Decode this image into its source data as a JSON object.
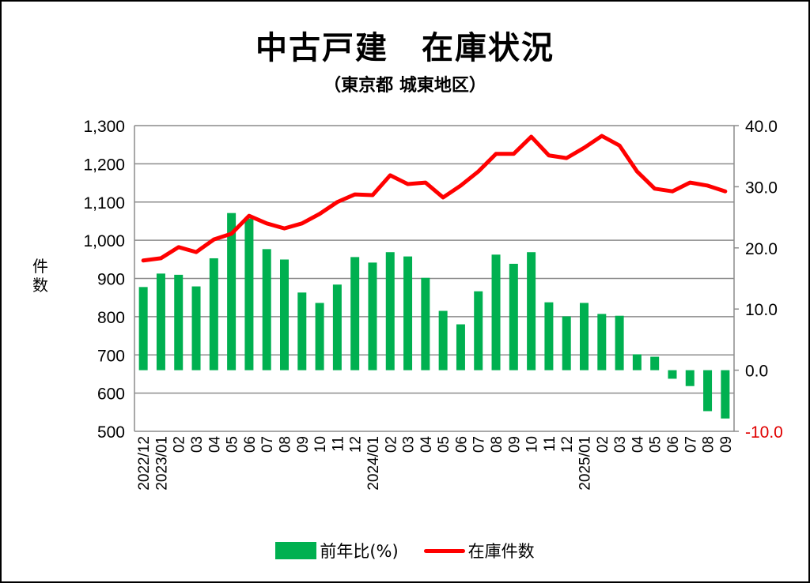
{
  "chart_data": {
    "type": "bar+line",
    "title": "中古戸建　在庫状況",
    "subtitle": "（東京都 城東地区）",
    "ylabel": "件数",
    "categories": [
      "2022/12",
      "2023/01",
      "02",
      "03",
      "04",
      "05",
      "06",
      "07",
      "08",
      "09",
      "10",
      "11",
      "12",
      "2024/01",
      "02",
      "03",
      "04",
      "05",
      "06",
      "07",
      "08",
      "09",
      "10",
      "11",
      "12",
      "2025/01",
      "02",
      "03",
      "04",
      "05",
      "06",
      "07",
      "08",
      "09"
    ],
    "left_axis": {
      "min": 500,
      "max": 1300,
      "step": 100,
      "ticks": [
        "500",
        "600",
        "700",
        "800",
        "900",
        "1,000",
        "1,100",
        "1,200",
        "1,300"
      ]
    },
    "right_axis": {
      "min": -10,
      "max": 40,
      "step": 10,
      "ticks": [
        "-10.0",
        "0.0",
        "10.0",
        "20.0",
        "30.0",
        "40.0"
      ]
    },
    "grid": true,
    "legend_position": "bottom",
    "series": [
      {
        "name": "前年比(%)",
        "type": "bar",
        "axis": "right",
        "color": "#00b050",
        "values": [
          13.6,
          15.8,
          15.6,
          13.7,
          18.3,
          25.7,
          24.8,
          19.8,
          18.1,
          12.7,
          11.0,
          14.0,
          18.5,
          17.6,
          19.3,
          18.6,
          15.1,
          9.7,
          7.5,
          12.9,
          18.9,
          17.4,
          19.3,
          11.1,
          8.8,
          11.0,
          9.2,
          8.9,
          2.6,
          2.2,
          -1.4,
          -2.6,
          -6.7,
          -7.9
        ]
      },
      {
        "name": "在庫件数",
        "type": "line",
        "axis": "left",
        "color": "#ff0000",
        "values": [
          947,
          953,
          982,
          969,
          1002,
          1017,
          1064,
          1044,
          1031,
          1044,
          1069,
          1100,
          1120,
          1118,
          1170,
          1147,
          1151,
          1112,
          1143,
          1180,
          1226,
          1226,
          1271,
          1222,
          1215,
          1242,
          1273,
          1248,
          1180,
          1135,
          1128,
          1151,
          1143,
          1128
        ]
      }
    ],
    "negative_tick_color": "#e00000"
  }
}
